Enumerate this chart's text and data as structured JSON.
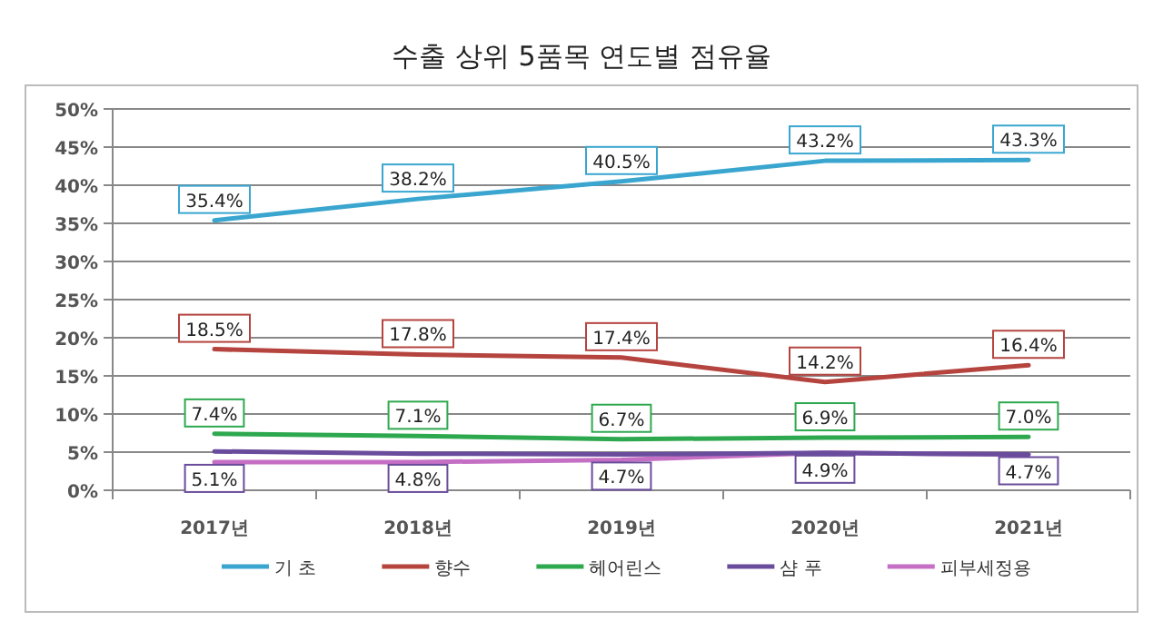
{
  "chart_data": {
    "type": "line",
    "title": "수출 상위 5품목 연도별 점유율",
    "categories": [
      "2017년",
      "2018년",
      "2019년",
      "2020년",
      "2021년"
    ],
    "series": [
      {
        "name": "기 초",
        "color": "#3aa6d0",
        "values": [
          35.4,
          38.2,
          40.5,
          43.2,
          43.3
        ],
        "value_labels": [
          "35.4%",
          "38.2%",
          "40.5%",
          "43.2%",
          "43.3%"
        ]
      },
      {
        "name": "향수",
        "color": "#b5443f",
        "values": [
          18.5,
          17.8,
          17.4,
          14.2,
          16.4
        ],
        "value_labels": [
          "18.5%",
          "17.8%",
          "17.4%",
          "14.2%",
          "16.4%"
        ]
      },
      {
        "name": "헤어린스",
        "color": "#2ea84f",
        "values": [
          7.4,
          7.1,
          6.7,
          6.9,
          7.0
        ],
        "value_labels": [
          "7.4%",
          "7.1%",
          "6.7%",
          "6.9%",
          "7.0%"
        ]
      },
      {
        "name": "샴 푸",
        "color": "#6a4c9c",
        "values": [
          5.1,
          4.8,
          4.7,
          4.9,
          4.7
        ],
        "value_labels": [
          "5.1%",
          "4.8%",
          "4.7%",
          "4.9%",
          "4.7%"
        ]
      },
      {
        "name": "피부세정용",
        "color": "#c46fc4",
        "values": [
          3.7,
          3.7,
          4.0,
          4.9,
          4.7
        ]
      }
    ],
    "ylim": [
      0,
      50
    ],
    "yticks": [
      {
        "value": 0,
        "label": "0%"
      },
      {
        "value": 5,
        "label": "5%"
      },
      {
        "value": 10,
        "label": "10%"
      },
      {
        "value": 15,
        "label": "15%"
      },
      {
        "value": 20,
        "label": "20%"
      },
      {
        "value": 25,
        "label": "25%"
      },
      {
        "value": 30,
        "label": "30%"
      },
      {
        "value": 35,
        "label": "35%"
      },
      {
        "value": 40,
        "label": "40%"
      },
      {
        "value": 45,
        "label": "45%"
      },
      {
        "value": 50,
        "label": "50%"
      }
    ],
    "grid": "y",
    "legend": "bottom",
    "marker": "none",
    "line_style": "solid"
  }
}
